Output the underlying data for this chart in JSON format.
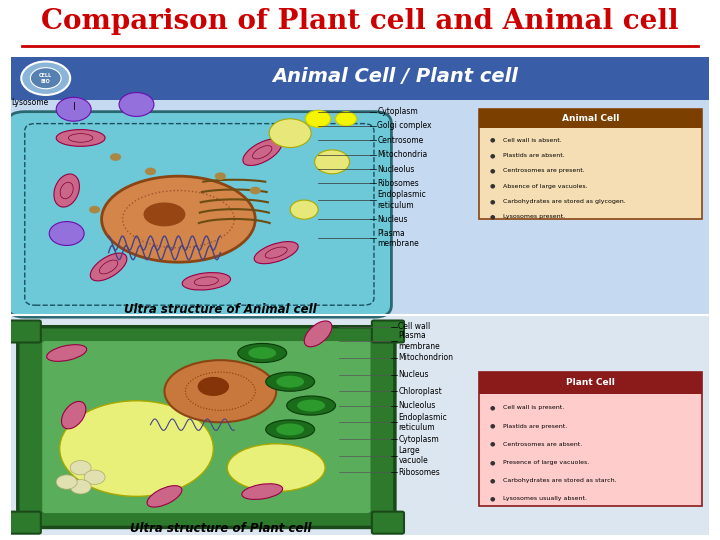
{
  "title": "Comparison of Plant cell and Animal cell",
  "title_color": "#cc0000",
  "title_fontsize": 20,
  "background_color": "#ffffff",
  "fig_width": 7.2,
  "fig_height": 5.4,
  "dpi": 100,
  "main_bg_color": "#c5d9f1",
  "header_bg_color": "#3a5da8",
  "header_text": "Animal Cell / Plant cell",
  "header_text_color": "#ffffff",
  "animal_section_bg": "#c5d9f1",
  "plant_section_bg": "#dce6f1",
  "animal_cell_title": "Animal Cell",
  "animal_cell_title_bg": "#7b3f00",
  "animal_cell_bg": "#f5deb3",
  "animal_cell_points": [
    "Cell wall is absent.",
    "Plastids are absent.",
    "Centrosomes are present.",
    "Absence of large vacuoles.",
    "Carbohydrates are stored as glycogen.",
    "Lysosomes present."
  ],
  "plant_cell_title": "Plant Cell",
  "plant_cell_title_bg": "#8b1a1a",
  "plant_cell_bg": "#ffcccc",
  "plant_cell_points": [
    "Cell wall is present.",
    "Plastids are present.",
    "Centrosomes are absent.",
    "Presence of large vacuoles.",
    "Carbohydrates are stored as starch.",
    "Lysosomes usually absent."
  ],
  "animal_footer": "Ultra structure of Animal cell",
  "plant_footer": "Ultra structure of Plant cell"
}
